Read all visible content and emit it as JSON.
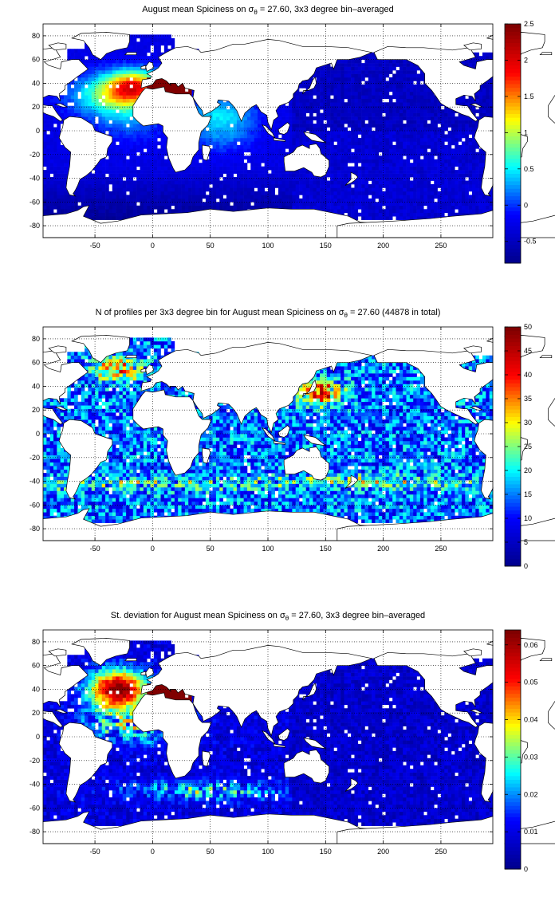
{
  "colors": {
    "jet": [
      "#00008f",
      "#0000ff",
      "#00ffff",
      "#ffff00",
      "#ff0000",
      "#800000"
    ],
    "land": "#ffffff",
    "coast": "#000000"
  },
  "chart_data": [
    {
      "type": "heatmap",
      "title_pre": "August mean Spiciness on ",
      "title_sym": "σ",
      "title_sub": "θ",
      "title_post": " = 27.60, 3x3 degree bin–averaged",
      "xlim": [
        -95,
        295
      ],
      "ylim": [
        -90,
        90
      ],
      "xticks": [
        -50,
        0,
        50,
        100,
        150,
        200,
        250
      ],
      "yticks": [
        -80,
        -60,
        -40,
        -20,
        0,
        20,
        40,
        60,
        80
      ],
      "grid": true,
      "colorbar": {
        "range": [
          -0.8,
          2.5
        ],
        "ticks": [
          -0.5,
          0,
          0.5,
          1,
          1.5,
          2,
          2.5
        ],
        "labels": [
          "-0.5",
          "0",
          "0.5",
          "1",
          "1.5",
          "2",
          "2.5"
        ]
      }
    },
    {
      "type": "heatmap",
      "title_pre": "N of profiles per 3x3 degree bin for August mean Spiciness on ",
      "title_sym": "σ",
      "title_sub": "θ",
      "title_post": " = 27.60 (44878 in total)",
      "xlim": [
        -95,
        295
      ],
      "ylim": [
        -90,
        90
      ],
      "xticks": [
        -50,
        0,
        50,
        100,
        150,
        200,
        250
      ],
      "yticks": [
        -80,
        -60,
        -40,
        -20,
        0,
        20,
        40,
        60,
        80
      ],
      "grid": true,
      "colorbar": {
        "range": [
          0,
          50
        ],
        "ticks": [
          0,
          5,
          10,
          15,
          20,
          25,
          30,
          35,
          40,
          45,
          50
        ],
        "labels": [
          "0",
          "5",
          "10",
          "15",
          "20",
          "25",
          "30",
          "35",
          "40",
          "45",
          "50"
        ]
      }
    },
    {
      "type": "heatmap",
      "title_pre": "St. deviation for August mean Spiciness on ",
      "title_sym": "σ",
      "title_sub": "θ",
      "title_post": " = 27.60, 3x3 degree bin–averaged",
      "xlim": [
        -95,
        295
      ],
      "ylim": [
        -90,
        90
      ],
      "xticks": [
        -50,
        0,
        50,
        100,
        150,
        200,
        250
      ],
      "yticks": [
        -80,
        -60,
        -40,
        -20,
        0,
        20,
        40,
        60,
        80
      ],
      "grid": true,
      "colorbar": {
        "range": [
          0,
          0.064
        ],
        "ticks": [
          0,
          0.01,
          0.02,
          0.03,
          0.04,
          0.05,
          0.06
        ],
        "labels": [
          "0",
          "0.01",
          "0.02",
          "0.03",
          "0.04",
          "0.05",
          "0.06"
        ]
      }
    }
  ]
}
